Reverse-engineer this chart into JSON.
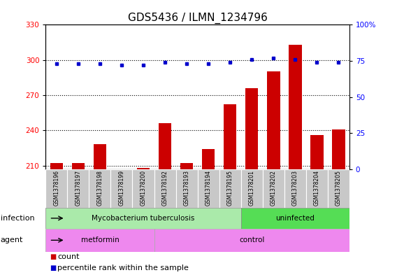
{
  "title": "GDS5436 / ILMN_1234796",
  "samples": [
    "GSM1378196",
    "GSM1378197",
    "GSM1378198",
    "GSM1378199",
    "GSM1378200",
    "GSM1378192",
    "GSM1378193",
    "GSM1378194",
    "GSM1378195",
    "GSM1378201",
    "GSM1378202",
    "GSM1378203",
    "GSM1378204",
    "GSM1378205"
  ],
  "counts": [
    212,
    212,
    228,
    207,
    208,
    246,
    212,
    224,
    262,
    276,
    290,
    313,
    236,
    241
  ],
  "percentile_ranks": [
    73,
    73,
    73,
    72,
    72,
    74,
    73,
    73,
    74,
    76,
    77,
    76,
    74,
    74
  ],
  "ylim_left": [
    207,
    330
  ],
  "ylim_right": [
    0,
    100
  ],
  "yticks_left": [
    210,
    240,
    270,
    300,
    330
  ],
  "yticks_right": [
    0,
    25,
    50,
    75,
    100
  ],
  "bar_color": "#cc0000",
  "dot_color": "#0000cc",
  "inf_tuberculosis_color": "#aaeaaa",
  "inf_uninfected_color": "#55dd55",
  "agent_metformin_color": "#ee88ee",
  "agent_control_color": "#ee88ee",
  "infection_label": "infection",
  "agent_label": "agent",
  "legend_count_label": "count",
  "legend_percentile_label": "percentile rank within the sample",
  "bar_width": 0.6,
  "xlim": [
    -0.5,
    13.5
  ],
  "sample_bg_color": "#c8c8c8",
  "tuberculosis_end_x": 8.5,
  "metformin_end_x": 4.5
}
